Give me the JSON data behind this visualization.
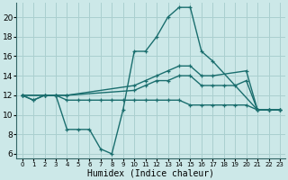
{
  "xlabel": "Humidex (Indice chaleur)",
  "ylabel": "",
  "background_color": "#cce8e8",
  "grid_color": "#aacfcf",
  "line_color": "#1a6e6e",
  "xlim": [
    -0.5,
    23.5
  ],
  "ylim": [
    5.5,
    21.5
  ],
  "yticks": [
    6,
    8,
    10,
    12,
    14,
    16,
    18,
    20
  ],
  "xtick_labels": [
    "0",
    "1",
    "2",
    "3",
    "4",
    "5",
    "6",
    "7",
    "8",
    "9",
    "10",
    "11",
    "12",
    "13",
    "14",
    "15",
    "16",
    "17",
    "18",
    "19",
    "20",
    "21",
    "22",
    "23"
  ],
  "lines": [
    {
      "x": [
        0,
        1,
        2,
        3,
        4,
        5,
        6,
        7,
        8,
        9,
        10,
        11,
        12,
        13,
        14,
        15,
        16,
        17,
        21,
        22,
        23
      ],
      "y": [
        12,
        11.5,
        12,
        12,
        8.5,
        8.5,
        8.5,
        6.5,
        6,
        10.5,
        16.5,
        16.5,
        18,
        20,
        21,
        21,
        16.5,
        15.5,
        10.5,
        10.5,
        10.5
      ]
    },
    {
      "x": [
        0,
        1,
        2,
        3,
        4,
        5,
        6,
        7,
        8,
        9,
        10,
        11,
        12,
        13,
        14,
        15,
        16,
        17,
        18,
        19,
        20,
        21,
        22,
        23
      ],
      "y": [
        12,
        11.5,
        12,
        12,
        11.5,
        11.5,
        11.5,
        11.5,
        11.5,
        11.5,
        11.5,
        11.5,
        11.5,
        11.5,
        11.5,
        11,
        11,
        11,
        11,
        11,
        11,
        10.5,
        10.5,
        10.5
      ]
    },
    {
      "x": [
        0,
        2,
        3,
        4,
        10,
        11,
        12,
        13,
        14,
        15,
        16,
        17,
        18,
        19,
        20,
        21,
        22,
        23
      ],
      "y": [
        12,
        12,
        12,
        12,
        12.5,
        13,
        13.5,
        13.5,
        14,
        14,
        13,
        13,
        13,
        13,
        13.5,
        10.5,
        10.5,
        10.5
      ]
    },
    {
      "x": [
        0,
        2,
        3,
        4,
        10,
        11,
        12,
        13,
        14,
        15,
        16,
        17,
        20,
        21,
        22,
        23
      ],
      "y": [
        12,
        12,
        12,
        12,
        13,
        13.5,
        14,
        14.5,
        15,
        15,
        14,
        14,
        14.5,
        10.5,
        10.5,
        10.5
      ]
    }
  ]
}
